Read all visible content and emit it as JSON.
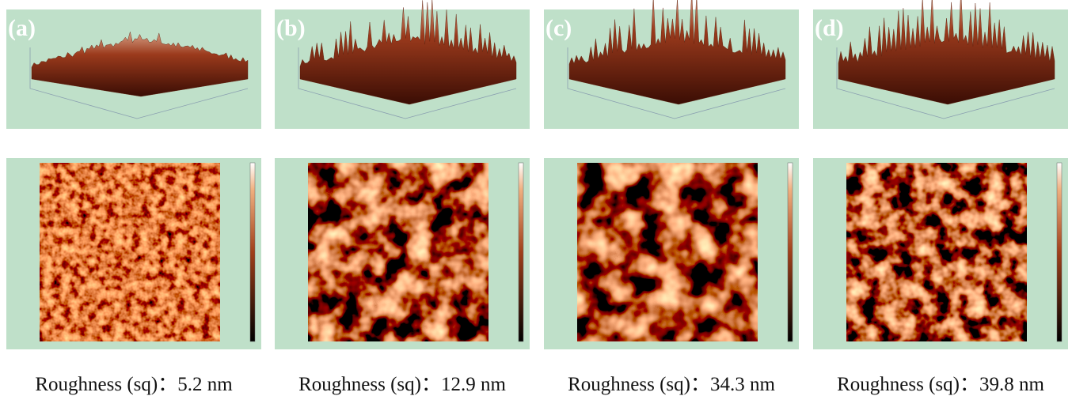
{
  "panels": [
    {
      "label": "(a)",
      "caption": "Roughness (sq)：5.2 nm"
    },
    {
      "label": "(b)",
      "caption": "Roughness (sq)：12.9 nm"
    },
    {
      "label": "(c)",
      "caption": "Roughness (sq)：34.3 nm"
    },
    {
      "label": "(d)",
      "caption": "Roughness (sq)：39.8 nm"
    }
  ]
}
